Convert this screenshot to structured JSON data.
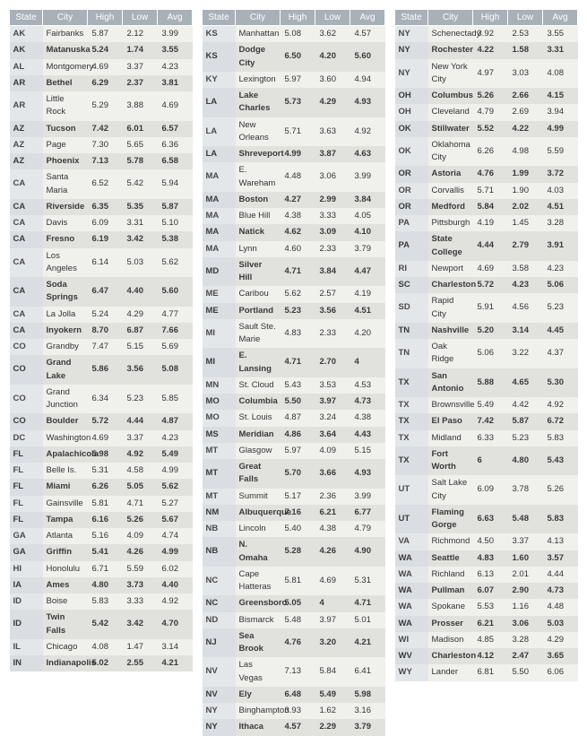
{
  "headers": [
    "State",
    "City",
    "High",
    "Low",
    "Avg"
  ],
  "styling": {
    "header_bg": "#a8b0b8",
    "header_fg": "#ffffff",
    "row_odd_bg": "#f0f0ed",
    "row_even_bg": "#e1e1de",
    "state_odd_bg": "#e4e7ea",
    "state_even_bg": "#dadee2",
    "font_family": "Arial",
    "header_fontsize_pt": 8,
    "body_fontsize_pt": 7,
    "columns": 3
  },
  "rows": [
    [
      "AK",
      "Fairbanks",
      "5.87",
      "2.12",
      "3.99"
    ],
    [
      "AK",
      "Matanuska",
      "5.24",
      "1.74",
      "3.55"
    ],
    [
      "AL",
      "Montgomery",
      "4.69",
      "3.37",
      "4.23"
    ],
    [
      "AR",
      "Bethel",
      "6.29",
      "2.37",
      "3.81"
    ],
    [
      "AR",
      "Little Rock",
      "5.29",
      "3.88",
      "4.69"
    ],
    [
      "AZ",
      "Tucson",
      "7.42",
      "6.01",
      "6.57"
    ],
    [
      "AZ",
      "Page",
      "7.30",
      "5.65",
      "6.36"
    ],
    [
      "AZ",
      "Phoenix",
      "7.13",
      "5.78",
      "6.58"
    ],
    [
      "CA",
      "Santa Maria",
      "6.52",
      "5.42",
      "5.94"
    ],
    [
      "CA",
      "Riverside",
      "6.35",
      "5.35",
      "5.87"
    ],
    [
      "CA",
      "Davis",
      "6.09",
      "3.31",
      "5.10"
    ],
    [
      "CA",
      "Fresno",
      "6.19",
      "3.42",
      "5.38"
    ],
    [
      "CA",
      "Los Angeles",
      "6.14",
      "5.03",
      "5.62"
    ],
    [
      "CA",
      "Soda Springs",
      "6.47",
      "4.40",
      "5.60"
    ],
    [
      "CA",
      "La Jolla",
      "5.24",
      "4.29",
      "4.77"
    ],
    [
      "CA",
      "Inyokern",
      "8.70",
      "6.87",
      "7.66"
    ],
    [
      "CO",
      "Grandby",
      "7.47",
      "5.15",
      "5.69"
    ],
    [
      "CO",
      "Grand Lake",
      "5.86",
      "3.56",
      "5.08"
    ],
    [
      "CO",
      "Grand Junction",
      "6.34",
      "5.23",
      "5.85"
    ],
    [
      "CO",
      "Boulder",
      "5.72",
      "4.44",
      "4.87"
    ],
    [
      "DC",
      "Washington",
      "4.69",
      "3.37",
      "4.23"
    ],
    [
      "FL",
      "Apalachicola",
      "5.98",
      "4.92",
      "5.49"
    ],
    [
      "FL",
      "Belle Is.",
      "5.31",
      "4.58",
      "4.99"
    ],
    [
      "FL",
      "Miami",
      "6.26",
      "5.05",
      "5.62"
    ],
    [
      "FL",
      "Gainsville",
      "5.81",
      "4.71",
      "5.27"
    ],
    [
      "FL",
      "Tampa",
      "6.16",
      "5.26",
      "5.67"
    ],
    [
      "GA",
      "Atlanta",
      "5.16",
      "4.09",
      "4.74"
    ],
    [
      "GA",
      "Griffin",
      "5.41",
      "4.26",
      "4.99"
    ],
    [
      "HI",
      "Honolulu",
      "6.71",
      "5.59",
      "6.02"
    ],
    [
      "IA",
      "Ames",
      "4.80",
      "3.73",
      "4.40"
    ],
    [
      "ID",
      "Boise",
      "5.83",
      "3.33",
      "4.92"
    ],
    [
      "ID",
      "Twin Falls",
      "5.42",
      "3.42",
      "4.70"
    ],
    [
      "IL",
      "Chicago",
      "4.08",
      "1.47",
      "3.14"
    ],
    [
      "IN",
      "Indianapolis",
      "5.02",
      "2.55",
      "4.21"
    ],
    [
      "KS",
      "Manhattan",
      "5.08",
      "3.62",
      "4.57"
    ],
    [
      "KS",
      "Dodge City",
      "6.50",
      "4.20",
      "5.60"
    ],
    [
      "KY",
      "Lexington",
      "5.97",
      "3.60",
      "4.94"
    ],
    [
      "LA",
      "Lake Charles",
      "5.73",
      "4.29",
      "4.93"
    ],
    [
      "LA",
      "New Orleans",
      "5.71",
      "3.63",
      "4.92"
    ],
    [
      "LA",
      "Shreveport",
      "4.99",
      "3.87",
      "4.63"
    ],
    [
      "MA",
      "E. Wareham",
      "4.48",
      "3.06",
      "3.99"
    ],
    [
      "MA",
      "Boston",
      "4.27",
      "2.99",
      "3.84"
    ],
    [
      "MA",
      "Blue Hill",
      "4.38",
      "3.33",
      "4.05"
    ],
    [
      "MA",
      "Natick",
      "4.62",
      "3.09",
      "4.10"
    ],
    [
      "MA",
      "Lynn",
      "4.60",
      "2.33",
      "3.79"
    ],
    [
      "MD",
      "Silver Hill",
      "4.71",
      "3.84",
      "4.47"
    ],
    [
      "ME",
      "Caribou",
      "5.62",
      "2.57",
      "4.19"
    ],
    [
      "ME",
      "Portland",
      "5.23",
      "3.56",
      "4.51"
    ],
    [
      "MI",
      "Sault Ste. Marie",
      "4.83",
      "2.33",
      "4.20"
    ],
    [
      "MI",
      "E. Lansing",
      "4.71",
      "2.70",
      "4"
    ],
    [
      "MN",
      "St. Cloud",
      "5.43",
      "3.53",
      "4.53"
    ],
    [
      "MO",
      "Columbia",
      "5.50",
      "3.97",
      "4.73"
    ],
    [
      "MO",
      "St. Louis",
      "4.87",
      "3.24",
      "4.38"
    ],
    [
      "MS",
      "Meridian",
      "4.86",
      "3.64",
      "4.43"
    ],
    [
      "MT",
      "Glasgow",
      "5.97",
      "4.09",
      "5.15"
    ],
    [
      "MT",
      "Great Falls",
      "5.70",
      "3.66",
      "4.93"
    ],
    [
      "MT",
      "Summit",
      "5.17",
      "2.36",
      "3.99"
    ],
    [
      "NM",
      "Albuquerque",
      "7.16",
      "6.21",
      "6.77"
    ],
    [
      "NB",
      "Lincoln",
      "5.40",
      "4.38",
      "4.79"
    ],
    [
      "NB",
      "N. Omaha",
      "5.28",
      "4.26",
      "4.90"
    ],
    [
      "NC",
      "Cape Hatteras",
      "5.81",
      "4.69",
      "5.31"
    ],
    [
      "NC",
      "Greensboro",
      "5.05",
      "4",
      "4.71"
    ],
    [
      "ND",
      "Bismarck",
      "5.48",
      "3.97",
      "5.01"
    ],
    [
      "NJ",
      "Sea Brook",
      "4.76",
      "3.20",
      "4.21"
    ],
    [
      "NV",
      "Las Vegas",
      "7.13",
      "5.84",
      "6.41"
    ],
    [
      "NV",
      "Ely",
      "6.48",
      "5.49",
      "5.98"
    ],
    [
      "NY",
      "Binghampton",
      "3.93",
      "1.62",
      "3.16"
    ],
    [
      "NY",
      "Ithaca",
      "4.57",
      "2.29",
      "3.79"
    ],
    [
      "NY",
      "Schenectady",
      "3.92",
      "2.53",
      "3.55"
    ],
    [
      "NY",
      "Rochester",
      "4.22",
      "1.58",
      "3.31"
    ],
    [
      "NY",
      "New York City",
      "4.97",
      "3.03",
      "4.08"
    ],
    [
      "OH",
      "Columbus",
      "5.26",
      "2.66",
      "4.15"
    ],
    [
      "OH",
      "Cleveland",
      "4.79",
      "2.69",
      "3.94"
    ],
    [
      "OK",
      "Stillwater",
      "5.52",
      "4.22",
      "4.99"
    ],
    [
      "OK",
      "Oklahoma City",
      "6.26",
      "4.98",
      "5.59"
    ],
    [
      "OR",
      "Astoria",
      "4.76",
      "1.99",
      "3.72"
    ],
    [
      "OR",
      "Corvallis",
      "5.71",
      "1.90",
      "4.03"
    ],
    [
      "OR",
      "Medford",
      "5.84",
      "2.02",
      "4.51"
    ],
    [
      "PA",
      "Pittsburgh",
      "4.19",
      "1.45",
      "3.28"
    ],
    [
      "PA",
      "State College",
      "4.44",
      "2.79",
      "3.91"
    ],
    [
      "RI",
      "Newport",
      "4.69",
      "3.58",
      "4.23"
    ],
    [
      "SC",
      "Charleston",
      "5.72",
      "4.23",
      "5.06"
    ],
    [
      "SD",
      "Rapid City",
      "5.91",
      "4.56",
      "5.23"
    ],
    [
      "TN",
      "Nashville",
      "5.20",
      "3.14",
      "4.45"
    ],
    [
      "TN",
      "Oak Ridge",
      "5.06",
      "3.22",
      "4.37"
    ],
    [
      "TX",
      "San Antonio",
      "5.88",
      "4.65",
      "5.30"
    ],
    [
      "TX",
      "Brownsville",
      "5.49",
      "4.42",
      "4.92"
    ],
    [
      "TX",
      "El Paso",
      "7.42",
      "5.87",
      "6.72"
    ],
    [
      "TX",
      "Midland",
      "6.33",
      "5.23",
      "5.83"
    ],
    [
      "TX",
      "Fort Worth",
      "6",
      "4.80",
      "5.43"
    ],
    [
      "UT",
      "Salt Lake City",
      "6.09",
      "3.78",
      "5.26"
    ],
    [
      "UT",
      "Flaming Gorge",
      "6.63",
      "5.48",
      "5.83"
    ],
    [
      "VA",
      "Richmond",
      "4.50",
      "3.37",
      "4.13"
    ],
    [
      "WA",
      "Seattle",
      "4.83",
      "1.60",
      "3.57"
    ],
    [
      "WA",
      "Richland",
      "6.13",
      "2.01",
      "4.44"
    ],
    [
      "WA",
      "Pullman",
      "6.07",
      "2.90",
      "4.73"
    ],
    [
      "WA",
      "Spokane",
      "5.53",
      "1.16",
      "4.48"
    ],
    [
      "WA",
      "Prosser",
      "6.21",
      "3.06",
      "5.03"
    ],
    [
      "WI",
      "Madison",
      "4.85",
      "3.28",
      "4.29"
    ],
    [
      "WV",
      "Charleston",
      "4.12",
      "2.47",
      "3.65"
    ],
    [
      "WY",
      "Lander",
      "6.81",
      "5.50",
      "6.06"
    ]
  ]
}
